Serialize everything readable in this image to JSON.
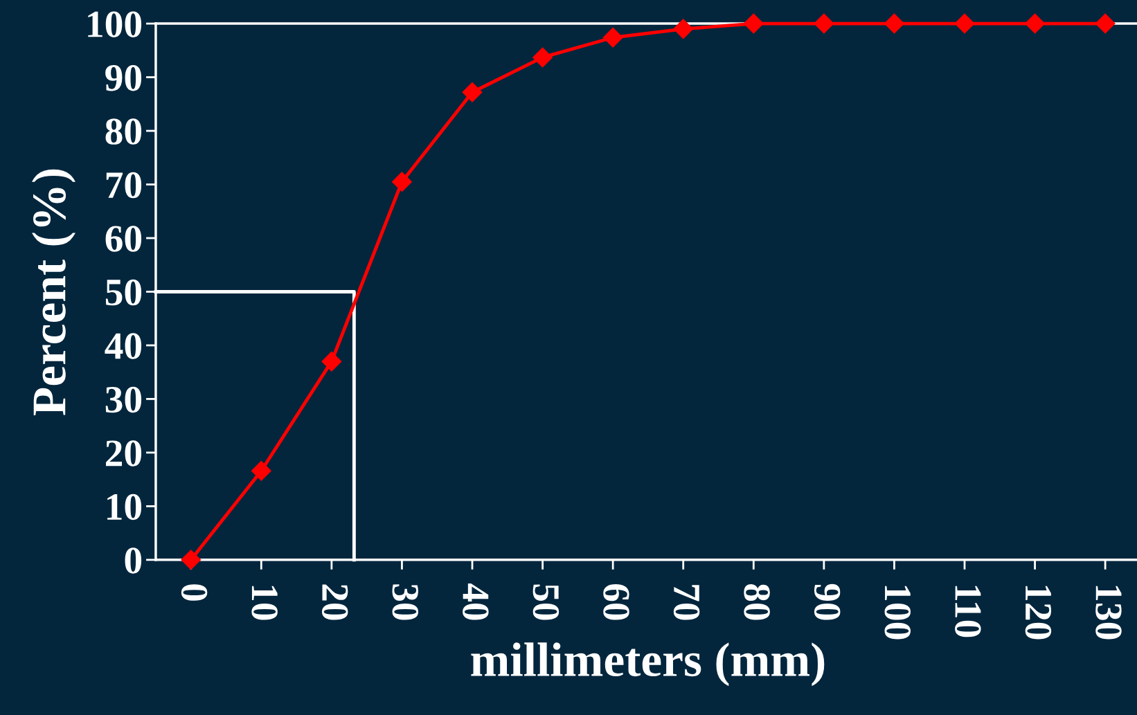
{
  "chart_data": {
    "type": "line",
    "xlabel": "millimeters (mm)",
    "ylabel": "Percent (%)",
    "xlim": [
      -5,
      135
    ],
    "ylim": [
      0,
      100
    ],
    "xticks": [
      0,
      10,
      20,
      30,
      40,
      50,
      60,
      70,
      80,
      90,
      100,
      110,
      120,
      130
    ],
    "yticks": [
      0,
      10,
      20,
      30,
      40,
      50,
      60,
      70,
      80,
      90,
      100
    ],
    "grid": false,
    "legend": false,
    "series": [
      {
        "x": [
          0,
          10,
          20,
          30,
          40,
          50,
          60,
          70,
          80,
          90,
          100,
          110,
          120,
          130
        ],
        "values": [
          0,
          16.6,
          37.0,
          70.5,
          87.2,
          93.7,
          97.4,
          99.0,
          100,
          100,
          100,
          100,
          100,
          100
        ],
        "color": "#ff0000",
        "marker": "diamond",
        "line_style": "solid"
      },
      {
        "x": [
          -5,
          23.2,
          23.2
        ],
        "values": [
          50,
          50,
          0
        ],
        "color": "#ffffff",
        "marker": "none",
        "line_style": "solid"
      }
    ]
  }
}
